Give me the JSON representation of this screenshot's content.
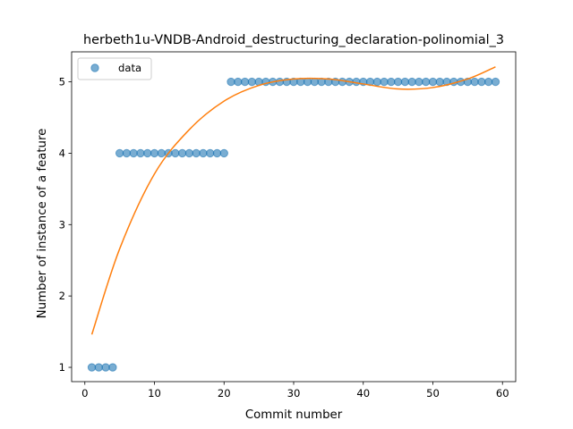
{
  "chart_data": {
    "type": "scatter",
    "title": "herbeth1u-VNDB-Android_destructuring_declaration-polinomial_3",
    "xlabel": "Commit number",
    "ylabel": "Number of instance of a feature",
    "xlim": [
      -1.9,
      61.9
    ],
    "ylim": [
      0.8,
      5.42
    ],
    "xticks": [
      0,
      10,
      20,
      30,
      40,
      50,
      60
    ],
    "yticks": [
      1,
      2,
      3,
      4,
      5
    ],
    "grid": false,
    "legend": {
      "location": "upper left",
      "entries": [
        "data"
      ]
    },
    "series": [
      {
        "name": "data",
        "kind": "scatter",
        "color": "#1f77b4",
        "x": [
          1,
          2,
          3,
          4,
          5,
          6,
          7,
          8,
          9,
          10,
          11,
          12,
          13,
          14,
          15,
          16,
          17,
          18,
          19,
          20,
          21,
          22,
          23,
          24,
          25,
          26,
          27,
          28,
          29,
          30,
          31,
          32,
          33,
          34,
          35,
          36,
          37,
          38,
          39,
          40,
          41,
          42,
          43,
          44,
          45,
          46,
          47,
          48,
          49,
          50,
          51,
          52,
          53,
          54,
          55,
          56,
          57,
          58,
          59
        ],
        "y": [
          1,
          1,
          1,
          1,
          4,
          4,
          4,
          4,
          4,
          4,
          4,
          4,
          4,
          4,
          4,
          4,
          4,
          4,
          4,
          4,
          5,
          5,
          5,
          5,
          5,
          5,
          5,
          5,
          5,
          5,
          5,
          5,
          5,
          5,
          5,
          5,
          5,
          5,
          5,
          5,
          5,
          5,
          5,
          5,
          5,
          5,
          5,
          5,
          5,
          5,
          5,
          5,
          5,
          5,
          5,
          5,
          5,
          5,
          5
        ]
      },
      {
        "kind": "line",
        "color": "#ff7f0e",
        "x": [
          1,
          5,
          10,
          15,
          20,
          25,
          30,
          35,
          40,
          45,
          50,
          55,
          59
        ],
        "y": [
          1.46,
          2.66,
          3.71,
          4.33,
          4.73,
          4.95,
          5.04,
          5.04,
          4.97,
          4.9,
          4.92,
          5.04,
          5.21
        ]
      }
    ]
  }
}
